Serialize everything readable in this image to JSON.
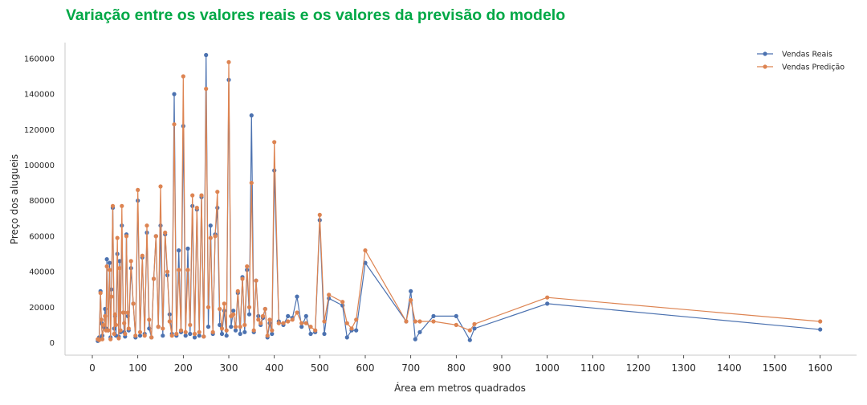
{
  "colors": {
    "title": "#00a846",
    "reais": "#4c72b0",
    "predicao": "#dd8452",
    "axis": "#c8c8c8"
  },
  "chart_data": {
    "type": "line",
    "title": "Variação entre os valores reais e os valores da previsão do modelo",
    "xlabel": "Área em metros quadrados",
    "ylabel": "Preço dos alugueis",
    "xlim": [
      -60,
      1680
    ],
    "ylim": [
      -7000,
      169000
    ],
    "xticks": [
      0,
      100,
      200,
      300,
      400,
      500,
      600,
      700,
      800,
      900,
      1000,
      1100,
      1200,
      1300,
      1400,
      1500,
      1600
    ],
    "xtick_labels": [
      "0",
      "100",
      "200",
      "300",
      "400",
      "500",
      "600",
      "700",
      "800",
      "900",
      "1000",
      "1100",
      "1200",
      "1300",
      "1400",
      "1500",
      "1600"
    ],
    "yticks": [
      0,
      20000,
      40000,
      60000,
      80000,
      100000,
      120000,
      140000,
      160000
    ],
    "ytick_labels": [
      "0",
      "20000",
      "40000",
      "60000",
      "80000",
      "100000",
      "120000",
      "140000",
      "160000"
    ],
    "grid": false,
    "legend_position": "top-right",
    "x": [
      12,
      15,
      18,
      20,
      22,
      25,
      28,
      30,
      32,
      35,
      38,
      40,
      42,
      45,
      48,
      50,
      52,
      55,
      58,
      60,
      62,
      65,
      68,
      70,
      72,
      75,
      78,
      80,
      85,
      90,
      95,
      100,
      105,
      110,
      115,
      120,
      125,
      130,
      135,
      140,
      145,
      150,
      155,
      160,
      165,
      170,
      175,
      180,
      185,
      190,
      195,
      200,
      205,
      210,
      215,
      220,
      225,
      230,
      235,
      240,
      245,
      250,
      255,
      260,
      265,
      270,
      275,
      280,
      285,
      290,
      295,
      300,
      305,
      310,
      315,
      320,
      325,
      330,
      335,
      340,
      345,
      350,
      355,
      360,
      365,
      370,
      375,
      380,
      385,
      390,
      395,
      400,
      410,
      420,
      430,
      440,
      450,
      460,
      470,
      480,
      490,
      500,
      510,
      520,
      550,
      560,
      570,
      580,
      600,
      690,
      700,
      710,
      720,
      750,
      800,
      830,
      840,
      1000,
      1600
    ],
    "series": [
      {
        "name": "Vendas Reais",
        "values": [
          1000,
          3000,
          29000,
          11000,
          4000,
          9000,
          19000,
          8000,
          47000,
          7000,
          45000,
          3000,
          30000,
          76000,
          8000,
          15000,
          4000,
          50000,
          3500,
          46000,
          6000,
          66000,
          17000,
          6000,
          3500,
          61000,
          15000,
          7000,
          42000,
          22000,
          3000,
          80000,
          4000,
          48000,
          5000,
          62000,
          8000,
          3000,
          36000,
          60000,
          9000,
          66000,
          4000,
          61000,
          38000,
          16000,
          5000,
          140000,
          4000,
          52000,
          6000,
          122000,
          4000,
          53000,
          5000,
          77000,
          3000,
          75000,
          4000,
          82000,
          3500,
          162000,
          9000,
          66000,
          5000,
          61000,
          76000,
          10000,
          5000,
          18000,
          4000,
          148000,
          9000,
          18000,
          7000,
          28000,
          5000,
          37000,
          6000,
          41000,
          16000,
          128000,
          6000,
          35000,
          15000,
          10000,
          14000,
          19000,
          3000,
          11000,
          5000,
          97000,
          12000,
          10000,
          15000,
          14000,
          26000,
          9000,
          15000,
          5000,
          6000,
          69000,
          5000,
          25000,
          21000,
          3000,
          7000,
          7000,
          45000,
          12000,
          29000,
          2000,
          6000,
          15000,
          15000,
          1500,
          8000,
          22000,
          7500
        ]
      },
      {
        "name": "Vendas Predição",
        "values": [
          2000,
          1500,
          28000,
          13000,
          2000,
          10000,
          15000,
          7000,
          43000,
          7000,
          41000,
          2000,
          26000,
          77000,
          5000,
          16000,
          10000,
          59000,
          2500,
          42000,
          7000,
          77000,
          17000,
          11000,
          5000,
          60000,
          17000,
          8000,
          46000,
          22000,
          4000,
          86000,
          6000,
          49000,
          4000,
          66000,
          13000,
          3000,
          36000,
          60000,
          9000,
          88000,
          8000,
          62000,
          40000,
          12000,
          4000,
          123000,
          5000,
          41000,
          7000,
          150000,
          6000,
          41000,
          10000,
          83000,
          5000,
          76000,
          6000,
          83000,
          3500,
          143000,
          20000,
          59000,
          6000,
          60000,
          85000,
          19000,
          8000,
          22000,
          7000,
          158000,
          15000,
          16000,
          9000,
          29000,
          9000,
          36000,
          10000,
          43000,
          20000,
          90000,
          7000,
          35000,
          13000,
          11000,
          15000,
          19000,
          4000,
          13000,
          7000,
          113000,
          11000,
          11000,
          12000,
          13000,
          17000,
          11000,
          11000,
          9000,
          7000,
          72000,
          12000,
          27000,
          23000,
          11000,
          8000,
          13000,
          52000,
          12000,
          24000,
          12000,
          12000,
          12000,
          10000,
          7000,
          10500,
          25500,
          12000
        ]
      }
    ]
  }
}
